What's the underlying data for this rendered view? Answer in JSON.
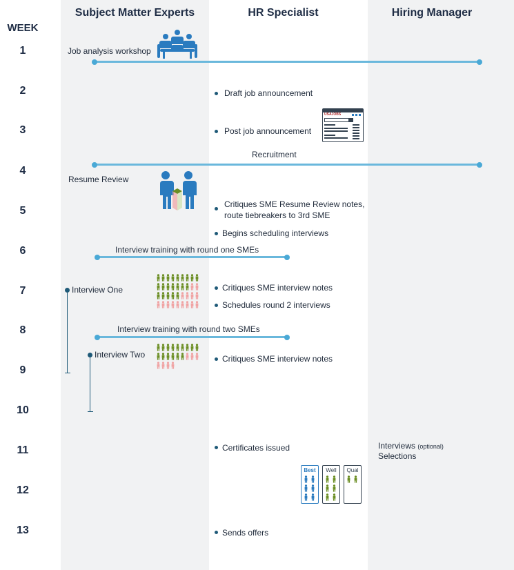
{
  "headers": {
    "sme": "Subject Matter Experts",
    "hr": "HR Specialist",
    "hm": "Hiring Manager",
    "week": "WEEK"
  },
  "weeks": [
    "1",
    "2",
    "3",
    "4",
    "5",
    "6",
    "7",
    "8",
    "9",
    "10",
    "11",
    "12",
    "13"
  ],
  "events": {
    "job_analysis": "Job analysis workshop",
    "draft": "Draft job announcement",
    "post": "Post job announcement",
    "recruitment": "Recruitment",
    "resume_review": "Resume Review",
    "critiques_resume_1": "Critiques SME Resume Review notes,",
    "critiques_resume_2": "route tiebreakers to 3rd SME",
    "scheduling": "Begins scheduling interviews",
    "training_one": "Interview training with round one SMEs",
    "interview_one": "Interview One",
    "critiques_interview_1": "Critiques SME interview notes",
    "schedules_round2": "Schedules round 2 interviews",
    "training_two": "Interview training with round two SMEs",
    "interview_two": "Interview Two",
    "critiques_interview_2": "Critiques SME interview notes",
    "certificates": "Certificates issued",
    "interviews_hm": "Interviews",
    "optional": "(optional)",
    "selections": "Selections",
    "offers": "Sends offers"
  },
  "usajobs_logo": "USAJOBS",
  "cert_labels": {
    "best": "Best",
    "well": "Well",
    "qual": "Qual"
  },
  "colors": {
    "sme_bg": "#f1f2f3",
    "hm_bg": "#f1f2f3",
    "timeline_line": "#6ab8dc",
    "bullet": "#1f5a78",
    "person_blue": "#2a7bbf",
    "person_green": "#6b8e23",
    "person_pink": "#f0a3a3"
  }
}
